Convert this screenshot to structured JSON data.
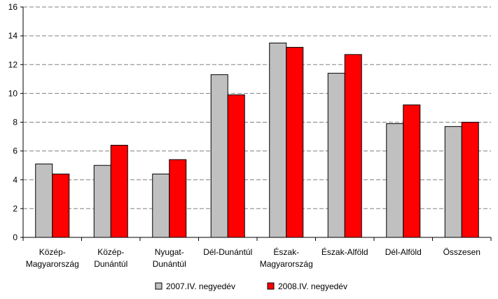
{
  "chart_data": {
    "type": "bar",
    "title": "",
    "xlabel": "",
    "ylabel": "",
    "ylim": [
      0,
      16
    ],
    "yticks": [
      0,
      2,
      4,
      6,
      8,
      10,
      12,
      14,
      16
    ],
    "grid": true,
    "legend_position": "bottom",
    "categories": [
      [
        "Közép-",
        "Magyarország"
      ],
      [
        "Közép-",
        "Dunántúl"
      ],
      [
        "Nyugat-",
        "Dunántúl"
      ],
      [
        "Dél-Dunántúl"
      ],
      [
        "Észak-",
        "Magyarország"
      ],
      [
        "Észak-Alföld"
      ],
      [
        "Dél-Alföld"
      ],
      [
        "Összesen"
      ]
    ],
    "series": [
      {
        "name": "2007.IV. negyedév",
        "color": "#c0c0c0",
        "values": [
          5.1,
          5.0,
          4.4,
          11.3,
          13.5,
          11.4,
          7.9,
          7.7
        ]
      },
      {
        "name": "2008.IV. negyedév",
        "color": "#ff0000",
        "values": [
          4.4,
          6.4,
          5.4,
          9.9,
          13.2,
          12.7,
          9.2,
          8.0
        ]
      }
    ]
  }
}
